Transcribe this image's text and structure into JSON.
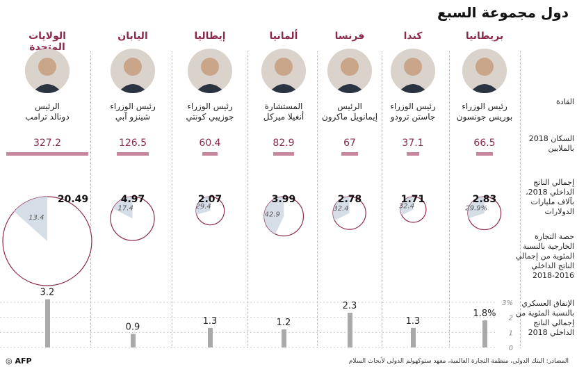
{
  "title": "دول مجموعة السبع",
  "row_labels": {
    "leaders": "القادة",
    "population": "السكان 2018 بالملايين",
    "gdp": "إجمالي الناتج الداخلي 2018، بآلاف مليارات الدولارات",
    "trade": "حصة التجارة الخارجية بالنسبة المئوية من إجمالي الناتج الداخلي 2016-2018",
    "military": "الإنفاق العسكري بالنسبة المئوية من إجمالي الناتج الداخلي 2018"
  },
  "military_axis": {
    "ticks": [
      "3%",
      "2",
      "1",
      "0"
    ]
  },
  "source": "المصادر: البنك الدولي، منظمة التجارة العالمية، معهد ستوكهولم الدولي لأبحاث السلام",
  "logo": "AFP",
  "colors": {
    "accent": "#8b2a4f",
    "pop_bar": "#c8869e",
    "pie_fill": "#d5dde6",
    "mil_bar": "#a9a9a9"
  },
  "countries": [
    {
      "name": "الولايات المتحدة",
      "title": "الرئيس",
      "leader": "دونالد ترامب",
      "population": "327.2",
      "gdp": "20.49",
      "trade": "13.4",
      "military": "3.2"
    },
    {
      "name": "اليابان",
      "title": "رئيس الوزراء",
      "leader": "شينزو آبي",
      "population": "126.5",
      "gdp": "4.97",
      "trade": "17.4",
      "military": "0.9"
    },
    {
      "name": "إيطاليا",
      "title": "رئيس الوزراء",
      "leader": "جوزيبي كونتي",
      "population": "60.4",
      "gdp": "2.07",
      "trade": "29.4",
      "military": "1.3"
    },
    {
      "name": "ألمانيا",
      "title": "المستشارة",
      "leader": "أنغيلا ميركل",
      "population": "82.9",
      "gdp": "3.99",
      "trade": "42.9",
      "military": "1.2"
    },
    {
      "name": "فرنسا",
      "title": "الرئيس",
      "leader": "إيمانويل ماكرون",
      "population": "67",
      "gdp": "2.78",
      "trade": "32.4",
      "military": "2.3"
    },
    {
      "name": "كندا",
      "title": "رئيس الوزراء",
      "leader": "جاستن ترودو",
      "population": "37.1",
      "gdp": "1.71",
      "trade": "32.4",
      "military": "1.3"
    },
    {
      "name": "بريطانيا",
      "title": "رئيس الوزراء",
      "leader": "بوريس جونسون",
      "population": "66.5",
      "gdp": "2.83",
      "trade": "29.9%",
      "military": "1.8%"
    }
  ],
  "chart_data": {
    "type": "bar",
    "title": "دول مجموعة السبع",
    "categories": [
      "الولايات المتحدة",
      "اليابان",
      "إيطاليا",
      "ألمانيا",
      "فرنسا",
      "كندا",
      "بريطانيا"
    ],
    "series": [
      {
        "values": [
          327.2,
          126.5,
          60.4,
          82.9,
          67,
          37.1,
          66.5
        ]
      },
      {
        "values": [
          20.49,
          4.97,
          2.07,
          3.99,
          2.78,
          1.71,
          2.83
        ]
      },
      {
        "values": [
          13.4,
          17.4,
          29.4,
          42.9,
          32.4,
          32.4,
          29.9
        ]
      },
      {
        "values": [
          3.2,
          0.9,
          1.3,
          1.2,
          2.3,
          1.3,
          1.8
        ]
      }
    ],
    "military_ylim": [
      0,
      3
    ]
  }
}
